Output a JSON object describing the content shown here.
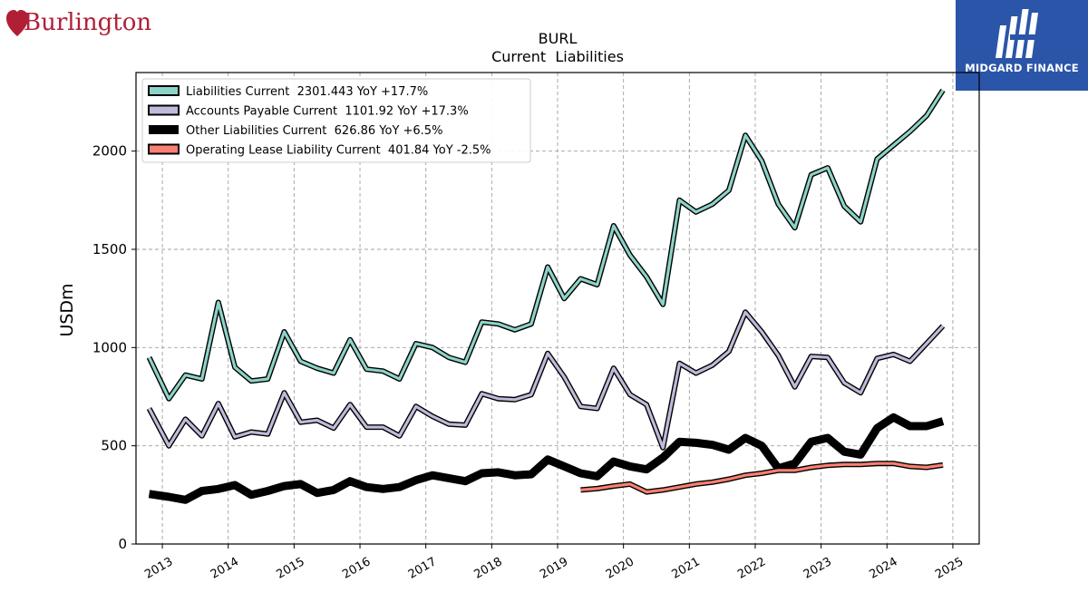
{
  "brand": {
    "name": "Burlington",
    "logo_color": "#b01f36"
  },
  "sponsor": {
    "name": "MIDGARD FINANCE",
    "background": "#2b55a8"
  },
  "chart_data": {
    "type": "line",
    "title": "BURL",
    "subtitle": "Current  Liabilities",
    "ylabel": "USDm",
    "xlabel": "",
    "xlim": [
      2012.6,
      2025.4
    ],
    "ylim": [
      0,
      2400
    ],
    "yticks": [
      0,
      500,
      1000,
      1500,
      2000
    ],
    "xticks": [
      2013,
      2014,
      2015,
      2016,
      2017,
      2018,
      2019,
      2020,
      2021,
      2022,
      2023,
      2024,
      2025
    ],
    "grid": true,
    "legend_position": "upper-left",
    "series": [
      {
        "name": "Liabilities Current  2301.443 YoY +17.7%",
        "color": "#8dd3c7",
        "x": [
          2012.8,
          2013.1,
          2013.35,
          2013.6,
          2013.85,
          2014.1,
          2014.35,
          2014.6,
          2014.85,
          2015.1,
          2015.35,
          2015.6,
          2015.85,
          2016.1,
          2016.35,
          2016.6,
          2016.85,
          2017.1,
          2017.35,
          2017.6,
          2017.85,
          2018.1,
          2018.35,
          2018.6,
          2018.85,
          2019.1,
          2019.35,
          2019.6,
          2019.85,
          2020.1,
          2020.35,
          2020.6,
          2020.85,
          2021.1,
          2021.35,
          2021.6,
          2021.85,
          2022.1,
          2022.35,
          2022.6,
          2022.85,
          2023.1,
          2023.35,
          2023.6,
          2023.85,
          2024.1,
          2024.35,
          2024.6,
          2024.85
        ],
        "values": [
          950,
          740,
          860,
          840,
          1230,
          900,
          830,
          840,
          1080,
          930,
          895,
          870,
          1040,
          890,
          880,
          840,
          1020,
          1000,
          950,
          925,
          1130,
          1120,
          1090,
          1120,
          1410,
          1250,
          1350,
          1320,
          1620,
          1470,
          1360,
          1220,
          1750,
          1690,
          1730,
          1800,
          2080,
          1950,
          1730,
          1610,
          1880,
          1915,
          1720,
          1640,
          1960,
          2030,
          2100,
          2180,
          2310
        ]
      },
      {
        "name": "Accounts Payable Current  1101.92 YoY +17.3%",
        "color": "#bebada",
        "x": [
          2012.8,
          2013.1,
          2013.35,
          2013.6,
          2013.85,
          2014.1,
          2014.35,
          2014.6,
          2014.85,
          2015.1,
          2015.35,
          2015.6,
          2015.85,
          2016.1,
          2016.35,
          2016.6,
          2016.85,
          2017.1,
          2017.35,
          2017.6,
          2017.85,
          2018.1,
          2018.35,
          2018.6,
          2018.85,
          2019.1,
          2019.35,
          2019.6,
          2019.85,
          2020.1,
          2020.35,
          2020.6,
          2020.85,
          2021.1,
          2021.35,
          2021.6,
          2021.85,
          2022.1,
          2022.35,
          2022.6,
          2022.85,
          2023.1,
          2023.35,
          2023.6,
          2023.85,
          2024.1,
          2024.35,
          2024.6,
          2024.85
        ],
        "values": [
          690,
          500,
          635,
          550,
          715,
          545,
          570,
          560,
          770,
          620,
          630,
          590,
          710,
          595,
          595,
          550,
          700,
          650,
          610,
          605,
          765,
          740,
          735,
          760,
          970,
          850,
          700,
          690,
          895,
          760,
          710,
          490,
          920,
          870,
          910,
          980,
          1180,
          1080,
          960,
          800,
          955,
          950,
          820,
          770,
          945,
          965,
          930,
          1020,
          1110
        ]
      },
      {
        "name": "Other Liabilities Current  626.86 YoY +6.5%",
        "color": "#000000",
        "x": [
          2012.8,
          2013.1,
          2013.35,
          2013.6,
          2013.85,
          2014.1,
          2014.35,
          2014.6,
          2014.85,
          2015.1,
          2015.35,
          2015.6,
          2015.85,
          2016.1,
          2016.35,
          2016.6,
          2016.85,
          2017.1,
          2017.35,
          2017.6,
          2017.85,
          2018.1,
          2018.35,
          2018.6,
          2018.85,
          2019.1,
          2019.35,
          2019.6,
          2019.85,
          2020.1,
          2020.35,
          2020.6,
          2020.85,
          2021.1,
          2021.35,
          2021.6,
          2021.85,
          2022.1,
          2022.35,
          2022.6,
          2022.85,
          2023.1,
          2023.35,
          2023.6,
          2023.85,
          2024.1,
          2024.35,
          2024.6,
          2024.85
        ],
        "values": [
          255,
          240,
          225,
          270,
          280,
          300,
          250,
          270,
          295,
          305,
          260,
          275,
          320,
          290,
          280,
          290,
          325,
          350,
          335,
          320,
          360,
          365,
          350,
          355,
          430,
          395,
          360,
          345,
          420,
          395,
          380,
          440,
          520,
          515,
          505,
          480,
          540,
          500,
          385,
          410,
          520,
          540,
          470,
          455,
          590,
          645,
          600,
          600,
          625
        ]
      },
      {
        "name": "Operating Lease Liability Current  401.84 YoY -2.5%",
        "color": "#fb8072",
        "x": [
          2019.35,
          2019.6,
          2019.85,
          2020.1,
          2020.35,
          2020.6,
          2020.85,
          2021.1,
          2021.35,
          2021.6,
          2021.85,
          2022.1,
          2022.35,
          2022.6,
          2022.85,
          2023.1,
          2023.35,
          2023.6,
          2023.85,
          2024.1,
          2024.35,
          2024.6,
          2024.85
        ],
        "values": [
          275,
          282,
          295,
          305,
          265,
          275,
          290,
          305,
          315,
          330,
          350,
          360,
          375,
          375,
          390,
          400,
          405,
          405,
          410,
          410,
          395,
          390,
          402
        ]
      }
    ]
  }
}
